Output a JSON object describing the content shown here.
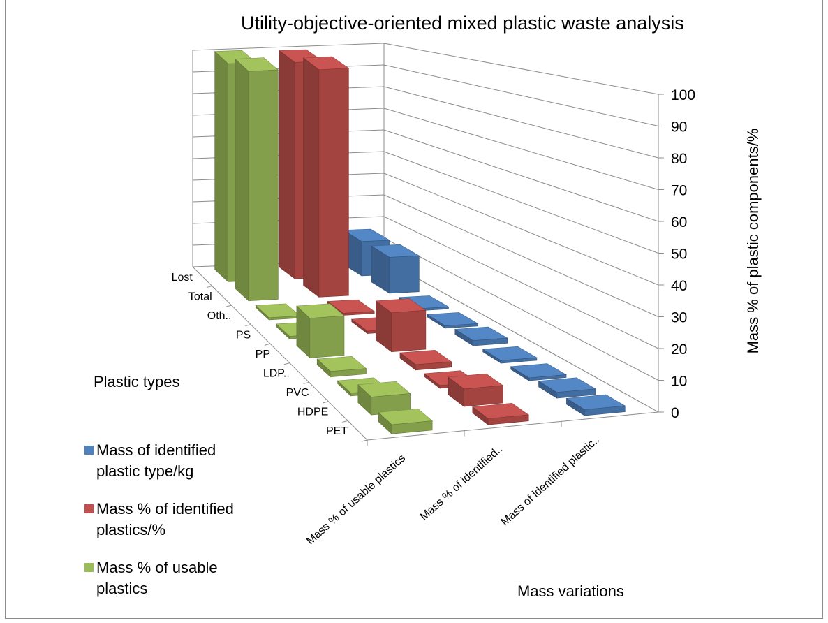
{
  "chart_data": {
    "type": "bar3d",
    "title": "Utility-objective-oriented mixed plastic waste analysis",
    "xlabel": "Plastic types",
    "zlabel": "Mass variations",
    "ylabel": "Mass % of plastic components/%",
    "ylim": [
      0,
      100
    ],
    "yticks": [
      "0",
      "10",
      "20",
      "30",
      "40",
      "50",
      "60",
      "70",
      "80",
      "90",
      "100"
    ],
    "categories": [
      "PET",
      "HDPE",
      "PVC",
      "LDP..",
      "PP",
      "PS",
      "Oth..",
      "Total",
      "Lost"
    ],
    "series_axis_labels": [
      "Mass % of usable plastics",
      "Mass % of identified..",
      "Mass of identified plastic.."
    ],
    "series": [
      {
        "name": "Mass % of usable plastics",
        "color": "#9bbb59",
        "values": [
          3,
          6,
          1,
          2,
          15,
          1,
          0,
          100,
          100
        ]
      },
      {
        "name": "Mass % of identified plastics/%",
        "color": "#c0504d",
        "values": [
          2,
          6,
          1,
          2,
          15,
          1,
          0,
          100,
          100
        ]
      },
      {
        "name": "Mass of identified plastic type/kg",
        "color": "#4f81bd",
        "values": [
          2,
          2,
          1,
          1,
          2,
          1,
          0,
          16,
          16
        ]
      }
    ],
    "legend_position": "left"
  },
  "legend": {
    "items": [
      {
        "label_line1": "Mass of identified",
        "label_line2": "plastic type/kg",
        "color": "#4f81bd"
      },
      {
        "label_line1": "Mass % of identified",
        "label_line2": "plastics/%",
        "color": "#c0504d"
      },
      {
        "label_line1": "Mass % of usable",
        "label_line2": "plastics",
        "color": "#9bbb59"
      }
    ]
  }
}
